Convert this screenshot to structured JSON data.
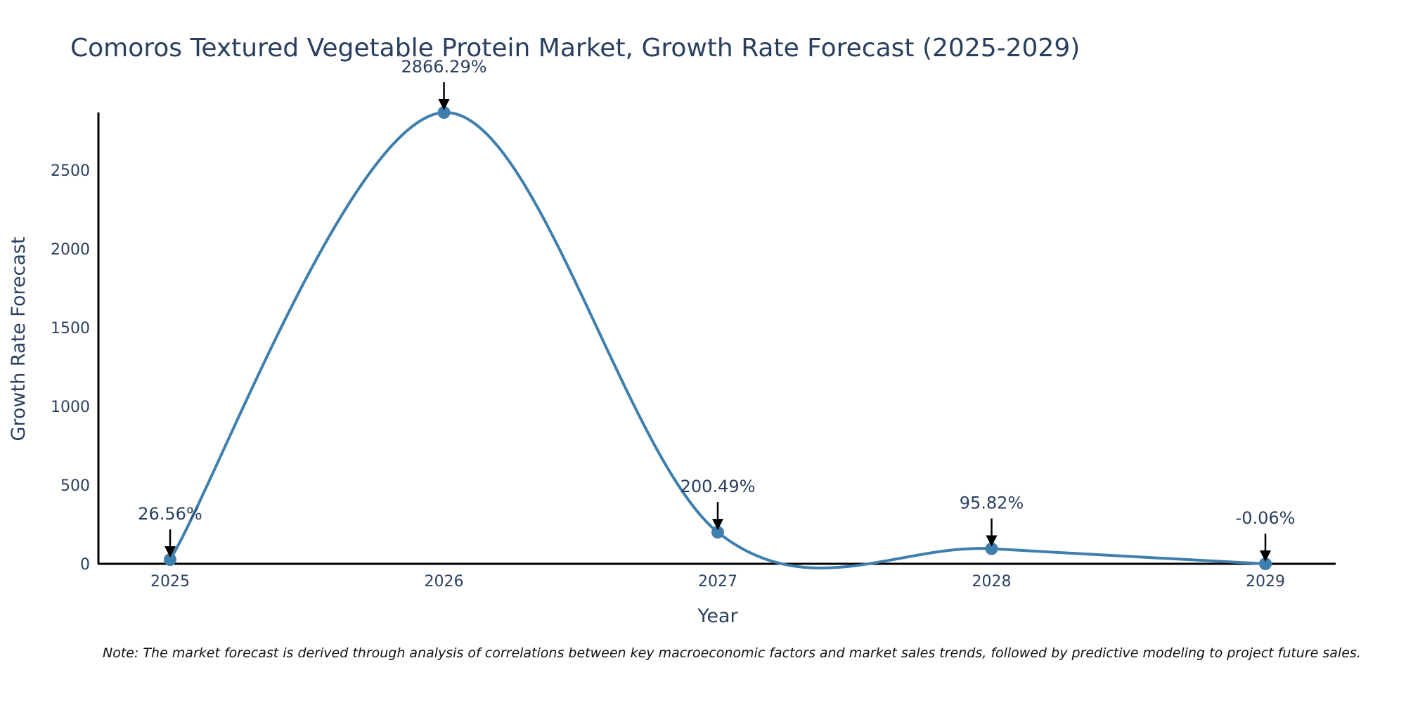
{
  "chart_data": {
    "type": "line",
    "title": "Comoros Textured Vegetable Protein Market, Growth Rate Forecast (2025-2029)",
    "xlabel": "Year",
    "ylabel": "Growth Rate Forecast",
    "x": [
      "2025",
      "2026",
      "2027",
      "2028",
      "2029"
    ],
    "series": [
      {
        "name": "Growth Rate Forecast",
        "values": [
          26.56,
          2866.29,
          200.49,
          95.82,
          -0.06
        ]
      }
    ],
    "annotations": [
      "26.56%",
      "2866.29%",
      "200.49%",
      "95.82%",
      "-0.06%"
    ],
    "yticks": [
      0,
      500,
      1000,
      1500,
      2000,
      2500
    ],
    "ylim": [
      0,
      2866.29
    ],
    "grid": false,
    "line_shape": "spline",
    "line_color": "#3f7fad",
    "marker_color": "#3f7fad"
  },
  "note": "Note: The market forecast is derived through analysis of correlations between key macroeconomic factors and market sales trends, followed by predictive modeling to project future sales."
}
